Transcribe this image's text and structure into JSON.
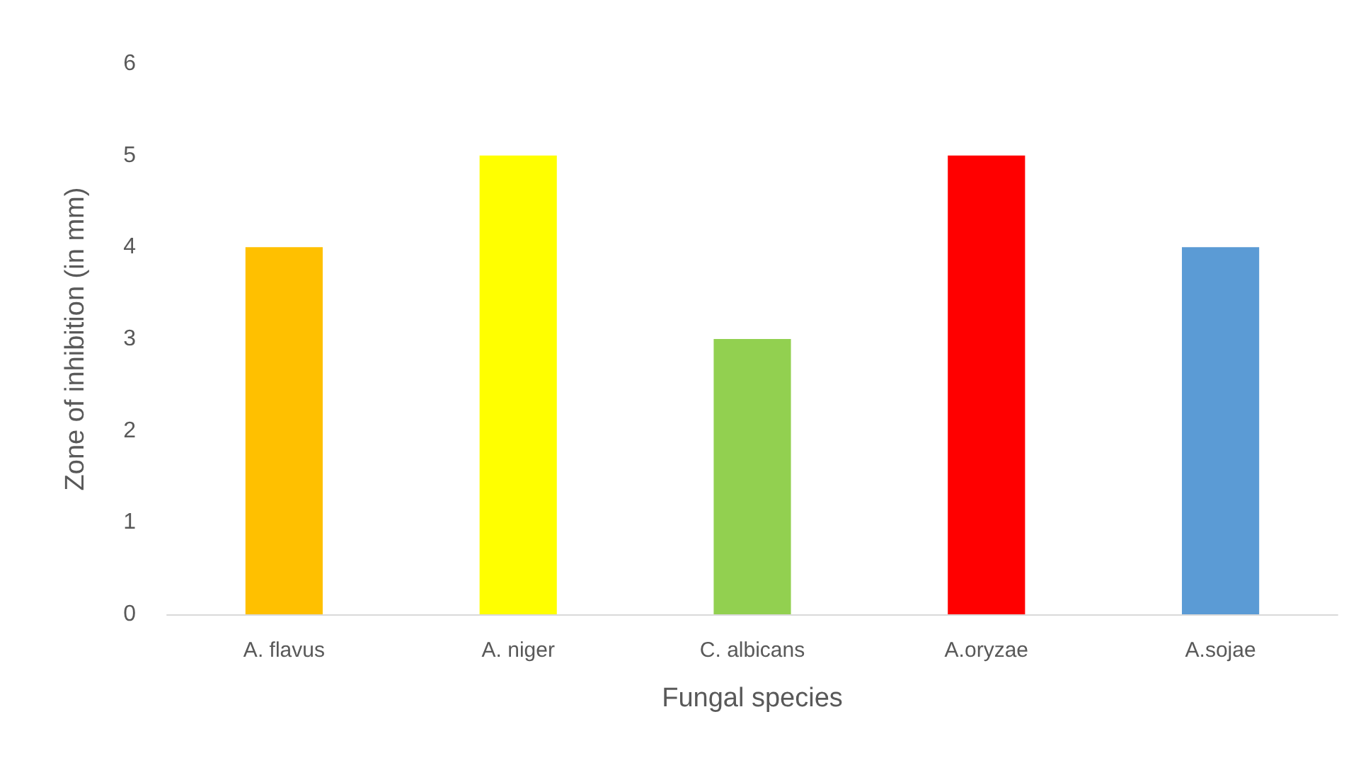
{
  "chart_data": {
    "type": "bar",
    "xlabel": "Fungal species",
    "ylabel": "Zone of inhibition (in mm)",
    "categories": [
      "A. flavus",
      "A. niger",
      "C. albicans",
      "A.oryzae",
      "A.sojae"
    ],
    "values": [
      4,
      5,
      3,
      5,
      4
    ],
    "colors": [
      "#ffc000",
      "#ffff00",
      "#92d050",
      "#ff0000",
      "#5b9bd5"
    ],
    "ylim": [
      0,
      6
    ],
    "yticks": [
      0,
      1,
      2,
      3,
      4,
      5,
      6
    ],
    "grid": false
  }
}
